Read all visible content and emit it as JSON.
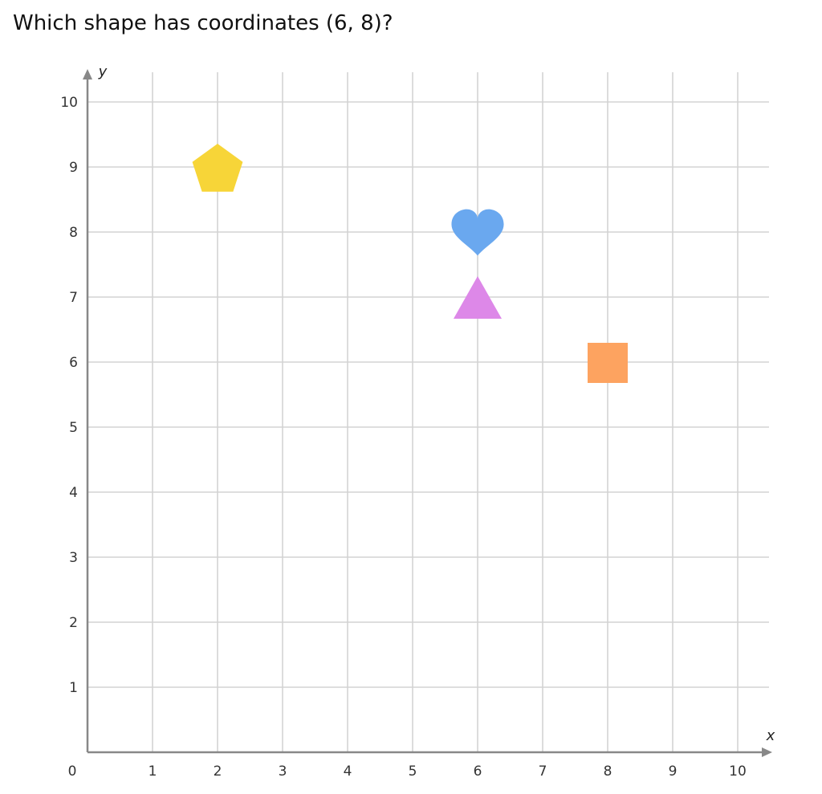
{
  "question": "Which shape has coordinates (6, 8)?",
  "chart_data": {
    "type": "scatter",
    "xlabel": "x",
    "ylabel": "y",
    "xlim": [
      0,
      10
    ],
    "ylim": [
      0,
      10
    ],
    "grid": true,
    "x_ticks": [
      "0",
      "1",
      "2",
      "3",
      "4",
      "5",
      "6",
      "7",
      "8",
      "9",
      "10"
    ],
    "y_ticks": [
      "1",
      "2",
      "3",
      "4",
      "5",
      "6",
      "7",
      "8",
      "9",
      "10"
    ],
    "points": [
      {
        "shape": "pentagon",
        "x": 2,
        "y": 9,
        "color": "#f7d538"
      },
      {
        "shape": "heart",
        "x": 6,
        "y": 8,
        "color": "#6aa8ef"
      },
      {
        "shape": "triangle",
        "x": 6,
        "y": 7,
        "color": "#dd88e8"
      },
      {
        "shape": "square",
        "x": 8,
        "y": 6,
        "color": "#fda360"
      }
    ]
  }
}
